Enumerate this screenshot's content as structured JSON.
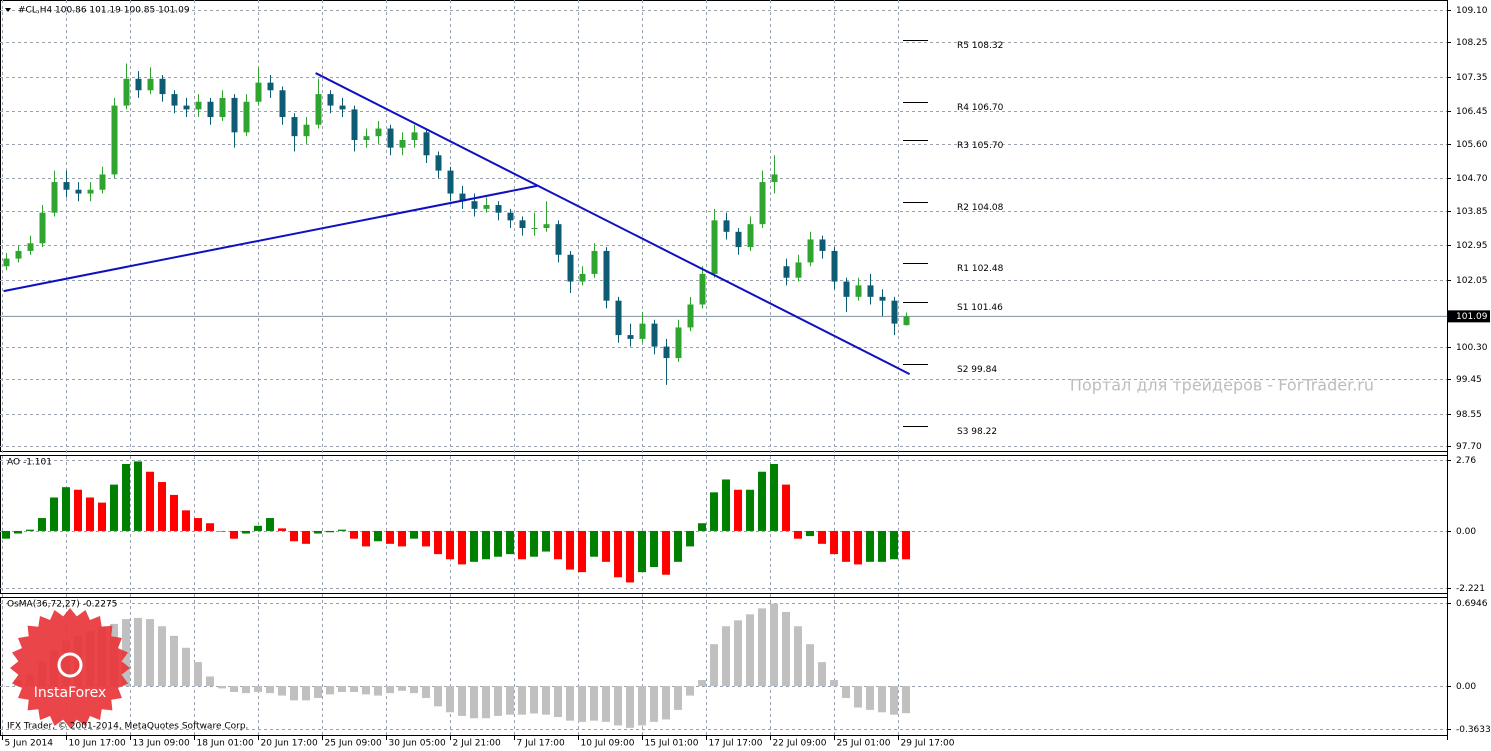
{
  "chart_data": {
    "type": "candlestick",
    "title": "#CL,H4  100.86 101.19 100.85 101.09",
    "up_color": "#2fa52f",
    "down_color": "#0d5c73",
    "candles": [
      [
        102.4,
        102.75,
        102.3,
        102.6
      ],
      [
        102.6,
        102.95,
        102.5,
        102.8
      ],
      [
        102.8,
        103.2,
        102.7,
        103.0
      ],
      [
        103.0,
        104.0,
        102.9,
        103.8
      ],
      [
        103.8,
        104.9,
        103.7,
        104.6
      ],
      [
        104.6,
        104.9,
        104.2,
        104.4
      ],
      [
        104.4,
        104.6,
        104.1,
        104.3
      ],
      [
        104.3,
        104.6,
        104.1,
        104.4
      ],
      [
        104.4,
        105.0,
        104.3,
        104.8
      ],
      [
        104.8,
        106.8,
        104.7,
        106.6
      ],
      [
        106.6,
        107.7,
        106.5,
        107.3
      ],
      [
        107.3,
        107.5,
        106.8,
        107.0
      ],
      [
        107.0,
        107.6,
        106.9,
        107.3
      ],
      [
        107.3,
        107.4,
        106.7,
        106.9
      ],
      [
        106.9,
        107.0,
        106.4,
        106.6
      ],
      [
        106.6,
        106.8,
        106.3,
        106.5
      ],
      [
        106.5,
        106.9,
        106.3,
        106.7
      ],
      [
        106.7,
        106.8,
        106.1,
        106.3
      ],
      [
        106.3,
        107.0,
        106.2,
        106.8
      ],
      [
        106.8,
        106.9,
        105.5,
        105.9
      ],
      [
        105.9,
        106.9,
        105.8,
        106.7
      ],
      [
        106.7,
        107.6,
        106.6,
        107.2
      ],
      [
        107.2,
        107.4,
        106.8,
        107.0
      ],
      [
        107.0,
        107.1,
        106.1,
        106.3
      ],
      [
        106.3,
        106.4,
        105.4,
        105.8
      ],
      [
        105.8,
        106.3,
        105.6,
        106.1
      ],
      [
        106.1,
        107.3,
        106.0,
        106.9
      ],
      [
        106.9,
        107.0,
        106.4,
        106.6
      ],
      [
        106.6,
        106.8,
        106.3,
        106.5
      ],
      [
        106.5,
        106.6,
        105.4,
        105.7
      ],
      [
        105.7,
        106.0,
        105.5,
        105.8
      ],
      [
        105.8,
        106.2,
        105.6,
        106.0
      ],
      [
        106.0,
        106.1,
        105.3,
        105.5
      ],
      [
        105.5,
        105.9,
        105.3,
        105.7
      ],
      [
        105.7,
        106.1,
        105.5,
        105.9
      ],
      [
        105.9,
        106.0,
        105.1,
        105.3
      ],
      [
        105.3,
        105.4,
        104.7,
        104.9
      ],
      [
        104.9,
        105.0,
        104.1,
        104.3
      ],
      [
        104.3,
        104.5,
        103.9,
        104.1
      ],
      [
        104.1,
        104.3,
        103.7,
        103.9
      ],
      [
        103.9,
        104.2,
        103.8,
        104.0
      ],
      [
        104.0,
        104.1,
        103.6,
        103.8
      ],
      [
        103.8,
        103.9,
        103.4,
        103.6
      ],
      [
        103.6,
        103.7,
        103.2,
        103.4
      ],
      [
        103.4,
        103.8,
        103.2,
        103.4
      ],
      [
        103.4,
        104.1,
        103.3,
        103.5
      ],
      [
        103.5,
        103.6,
        102.5,
        102.7
      ],
      [
        102.7,
        102.8,
        101.7,
        102.0
      ],
      [
        102.0,
        102.4,
        101.9,
        102.2
      ],
      [
        102.2,
        103.0,
        102.1,
        102.8
      ],
      [
        102.8,
        102.9,
        101.3,
        101.5
      ],
      [
        101.5,
        101.6,
        100.4,
        100.6
      ],
      [
        100.6,
        100.9,
        100.3,
        100.5
      ],
      [
        100.5,
        101.2,
        100.4,
        100.9
      ],
      [
        100.9,
        101.0,
        100.1,
        100.3
      ],
      [
        100.3,
        100.5,
        99.3,
        100.0
      ],
      [
        100.0,
        101.0,
        99.9,
        100.8
      ],
      [
        100.8,
        101.6,
        100.7,
        101.4
      ],
      [
        101.4,
        102.4,
        101.3,
        102.2
      ],
      [
        102.2,
        103.9,
        102.1,
        103.6
      ],
      [
        103.6,
        103.8,
        103.1,
        103.3
      ],
      [
        103.3,
        103.4,
        102.7,
        102.9
      ],
      [
        102.9,
        103.7,
        102.8,
        103.5
      ],
      [
        103.5,
        104.9,
        103.4,
        104.6
      ],
      [
        104.6,
        105.3,
        104.3,
        104.8
      ],
      [
        102.4,
        102.6,
        101.9,
        102.1
      ],
      [
        102.1,
        102.7,
        102.0,
        102.5
      ],
      [
        102.5,
        103.3,
        102.4,
        103.1
      ],
      [
        103.1,
        103.2,
        102.6,
        102.8
      ],
      [
        102.8,
        102.9,
        101.8,
        102.0
      ],
      [
        102.0,
        102.1,
        101.2,
        101.6
      ],
      [
        101.6,
        102.1,
        101.5,
        101.9
      ],
      [
        101.9,
        102.2,
        101.4,
        101.6
      ],
      [
        101.6,
        101.8,
        101.1,
        101.5
      ],
      [
        101.5,
        101.6,
        100.6,
        100.9
      ],
      [
        100.86,
        101.19,
        100.85,
        101.09
      ]
    ],
    "xlim": [
      -0.5,
      120.08
    ],
    "xticks": [
      {
        "value": -0.33,
        "label": "5 Jun 2014"
      },
      {
        "value": 5,
        "label": "10 Jun 17:00"
      },
      {
        "value": 10.33,
        "label": "13 Jun 09:00"
      },
      {
        "value": 15.67,
        "label": "18 Jun 01:00"
      },
      {
        "value": 21,
        "label": "20 Jun 17:00"
      },
      {
        "value": 26.33,
        "label": "25 Jun 09:00"
      },
      {
        "value": 31.67,
        "label": "30 Jun 05:00"
      },
      {
        "value": 37,
        "label": "2 Jul 21:00"
      },
      {
        "value": 42.33,
        "label": "7 Jul 17:00"
      },
      {
        "value": 47.67,
        "label": "10 Jul 09:00"
      },
      {
        "value": 53,
        "label": "15 Jul 01:00"
      },
      {
        "value": 58.33,
        "label": "17 Jul 17:00"
      },
      {
        "value": 63.67,
        "label": "22 Jul 09:00"
      },
      {
        "value": 69,
        "label": "25 Jul 01:00"
      },
      {
        "value": 74.33,
        "label": "29 Jul 17:00"
      }
    ],
    "ylim": [
      97.57,
      109.36
    ],
    "yticks": [
      {
        "value": 109.1,
        "label": "109.10"
      },
      108.25,
      107.35,
      106.45,
      {
        "value": 105.6,
        "label": "105.60"
      },
      {
        "value": 104.7,
        "label": "104.70"
      },
      103.85,
      102.95,
      102.05,
      {
        "value": 100.3,
        "label": "100.30"
      },
      99.45,
      98.55,
      {
        "value": 97.7,
        "label": "97.70"
      }
    ],
    "grid": true,
    "last_price": 101.09,
    "pivots": [
      {
        "label": "R5 108.32",
        "value": 108.32
      },
      {
        "label": "R4 106.70",
        "value": 106.7
      },
      {
        "label": "R3 105.70",
        "value": 105.7
      },
      {
        "label": "R2 104.08",
        "value": 104.08
      },
      {
        "label": "R1 102.48",
        "value": 102.48
      },
      {
        "label": "S1 101.46",
        "value": 101.46
      },
      {
        "label": "S2 99.84",
        "value": 99.84
      },
      {
        "label": "S3 98.22",
        "value": 98.22
      }
    ],
    "trendlines": [
      {
        "from": [
          25.8,
          107.45
        ],
        "to": [
          75.3,
          99.58
        ],
        "color": "#1010c0"
      },
      {
        "from": [
          -0.2,
          101.75
        ],
        "to": [
          44.25,
          104.5
        ],
        "color": "#1010c0"
      }
    ],
    "watermark": "Портал для трейдеров - ForTrader.ru",
    "copyright": "IFX Trader, © 2001-2014, MetaQuotes Software Corp.",
    "logo_text": "InstaForex",
    "indicators": [
      {
        "type": "histogram",
        "title": "AO -1.101",
        "up_color": "#008000",
        "down_color": "#ff0000",
        "values": [
          -0.3,
          -0.1,
          0.05,
          0.5,
          1.3,
          1.7,
          1.6,
          1.3,
          1.1,
          1.8,
          2.6,
          2.7,
          2.3,
          1.9,
          1.4,
          0.8,
          0.5,
          0.3,
          0.0,
          -0.3,
          -0.1,
          0.2,
          0.5,
          0.1,
          -0.4,
          -0.5,
          -0.1,
          -0.05,
          0.05,
          -0.3,
          -0.6,
          -0.4,
          -0.5,
          -0.6,
          -0.3,
          -0.6,
          -0.9,
          -1.1,
          -1.3,
          -1.2,
          -1.1,
          -1.0,
          -0.9,
          -1.1,
          -1.0,
          -0.8,
          -1.1,
          -1.5,
          -1.6,
          -1.0,
          -1.2,
          -1.8,
          -2.0,
          -1.6,
          -1.4,
          -1.7,
          -1.2,
          -0.6,
          0.3,
          1.5,
          2.0,
          1.6,
          1.6,
          2.3,
          2.6,
          1.8,
          -0.3,
          -0.2,
          -0.5,
          -0.9,
          -1.2,
          -1.3,
          -1.2,
          -1.2,
          -1.1,
          -1.101
        ],
        "ylim": [
          -2.41,
          2.95
        ],
        "yticks": [
          2.76,
          {
            "value": 0,
            "label": "0.00"
          },
          -2.221
        ]
      },
      {
        "type": "histogram",
        "title": "OsMA(36,72,27) -0.2275",
        "color": "#c0c0c0",
        "values": [
          0.0,
          0.05,
          0.1,
          0.2,
          0.3,
          0.38,
          0.42,
          0.46,
          0.5,
          0.52,
          0.56,
          0.57,
          0.56,
          0.5,
          0.42,
          0.32,
          0.2,
          0.08,
          -0.02,
          -0.05,
          -0.06,
          -0.05,
          -0.06,
          -0.08,
          -0.12,
          -0.12,
          -0.1,
          -0.07,
          -0.05,
          -0.05,
          -0.07,
          -0.08,
          -0.06,
          -0.04,
          -0.06,
          -0.1,
          -0.17,
          -0.22,
          -0.25,
          -0.27,
          -0.27,
          -0.25,
          -0.24,
          -0.24,
          -0.23,
          -0.24,
          -0.26,
          -0.29,
          -0.3,
          -0.29,
          -0.3,
          -0.33,
          -0.35,
          -0.33,
          -0.3,
          -0.28,
          -0.2,
          -0.08,
          0.05,
          0.35,
          0.5,
          0.55,
          0.6,
          0.65,
          0.69,
          0.62,
          0.5,
          0.35,
          0.2,
          0.05,
          -0.1,
          -0.18,
          -0.2,
          -0.22,
          -0.24,
          -0.2275
        ],
        "ylim": [
          -0.41,
          0.745
        ],
        "yticks": [
          0.6946,
          {
            "value": 0,
            "label": "0.00"
          },
          -0.3633
        ]
      }
    ]
  }
}
